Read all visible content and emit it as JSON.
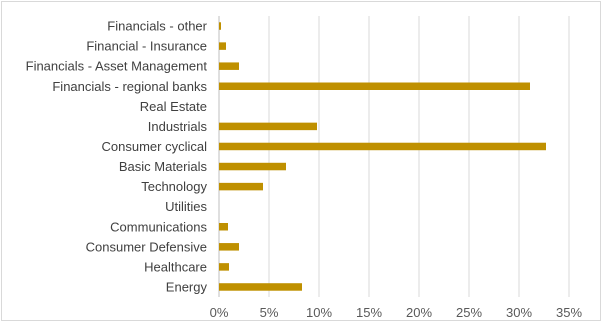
{
  "chart_data": {
    "type": "bar",
    "orientation": "horizontal",
    "title": "",
    "xlabel": "",
    "ylabel": "",
    "categories": [
      "Financials - other",
      "Financial - Insurance",
      "Financials - Asset Management",
      "Financials - regional banks",
      "Real Estate",
      "Industrials",
      "Consumer cyclical",
      "Basic Materials",
      "Technology",
      "Utilities",
      "Communications",
      "Consumer Defensive",
      "Healthcare",
      "Energy"
    ],
    "values": [
      0.2,
      0.7,
      2.0,
      31.1,
      0.0,
      9.8,
      32.7,
      6.7,
      4.4,
      0.0,
      0.9,
      2.0,
      1.0,
      8.3
    ],
    "xlim": [
      0,
      35
    ],
    "xticks": [
      "0%",
      "5%",
      "10%",
      "15%",
      "20%",
      "25%",
      "30%",
      "35%"
    ],
    "grid": true,
    "legend": "none",
    "colors": {
      "bar": "#BF9000",
      "grid": "#d9d9d9",
      "axis": "#bfbfbf"
    }
  }
}
